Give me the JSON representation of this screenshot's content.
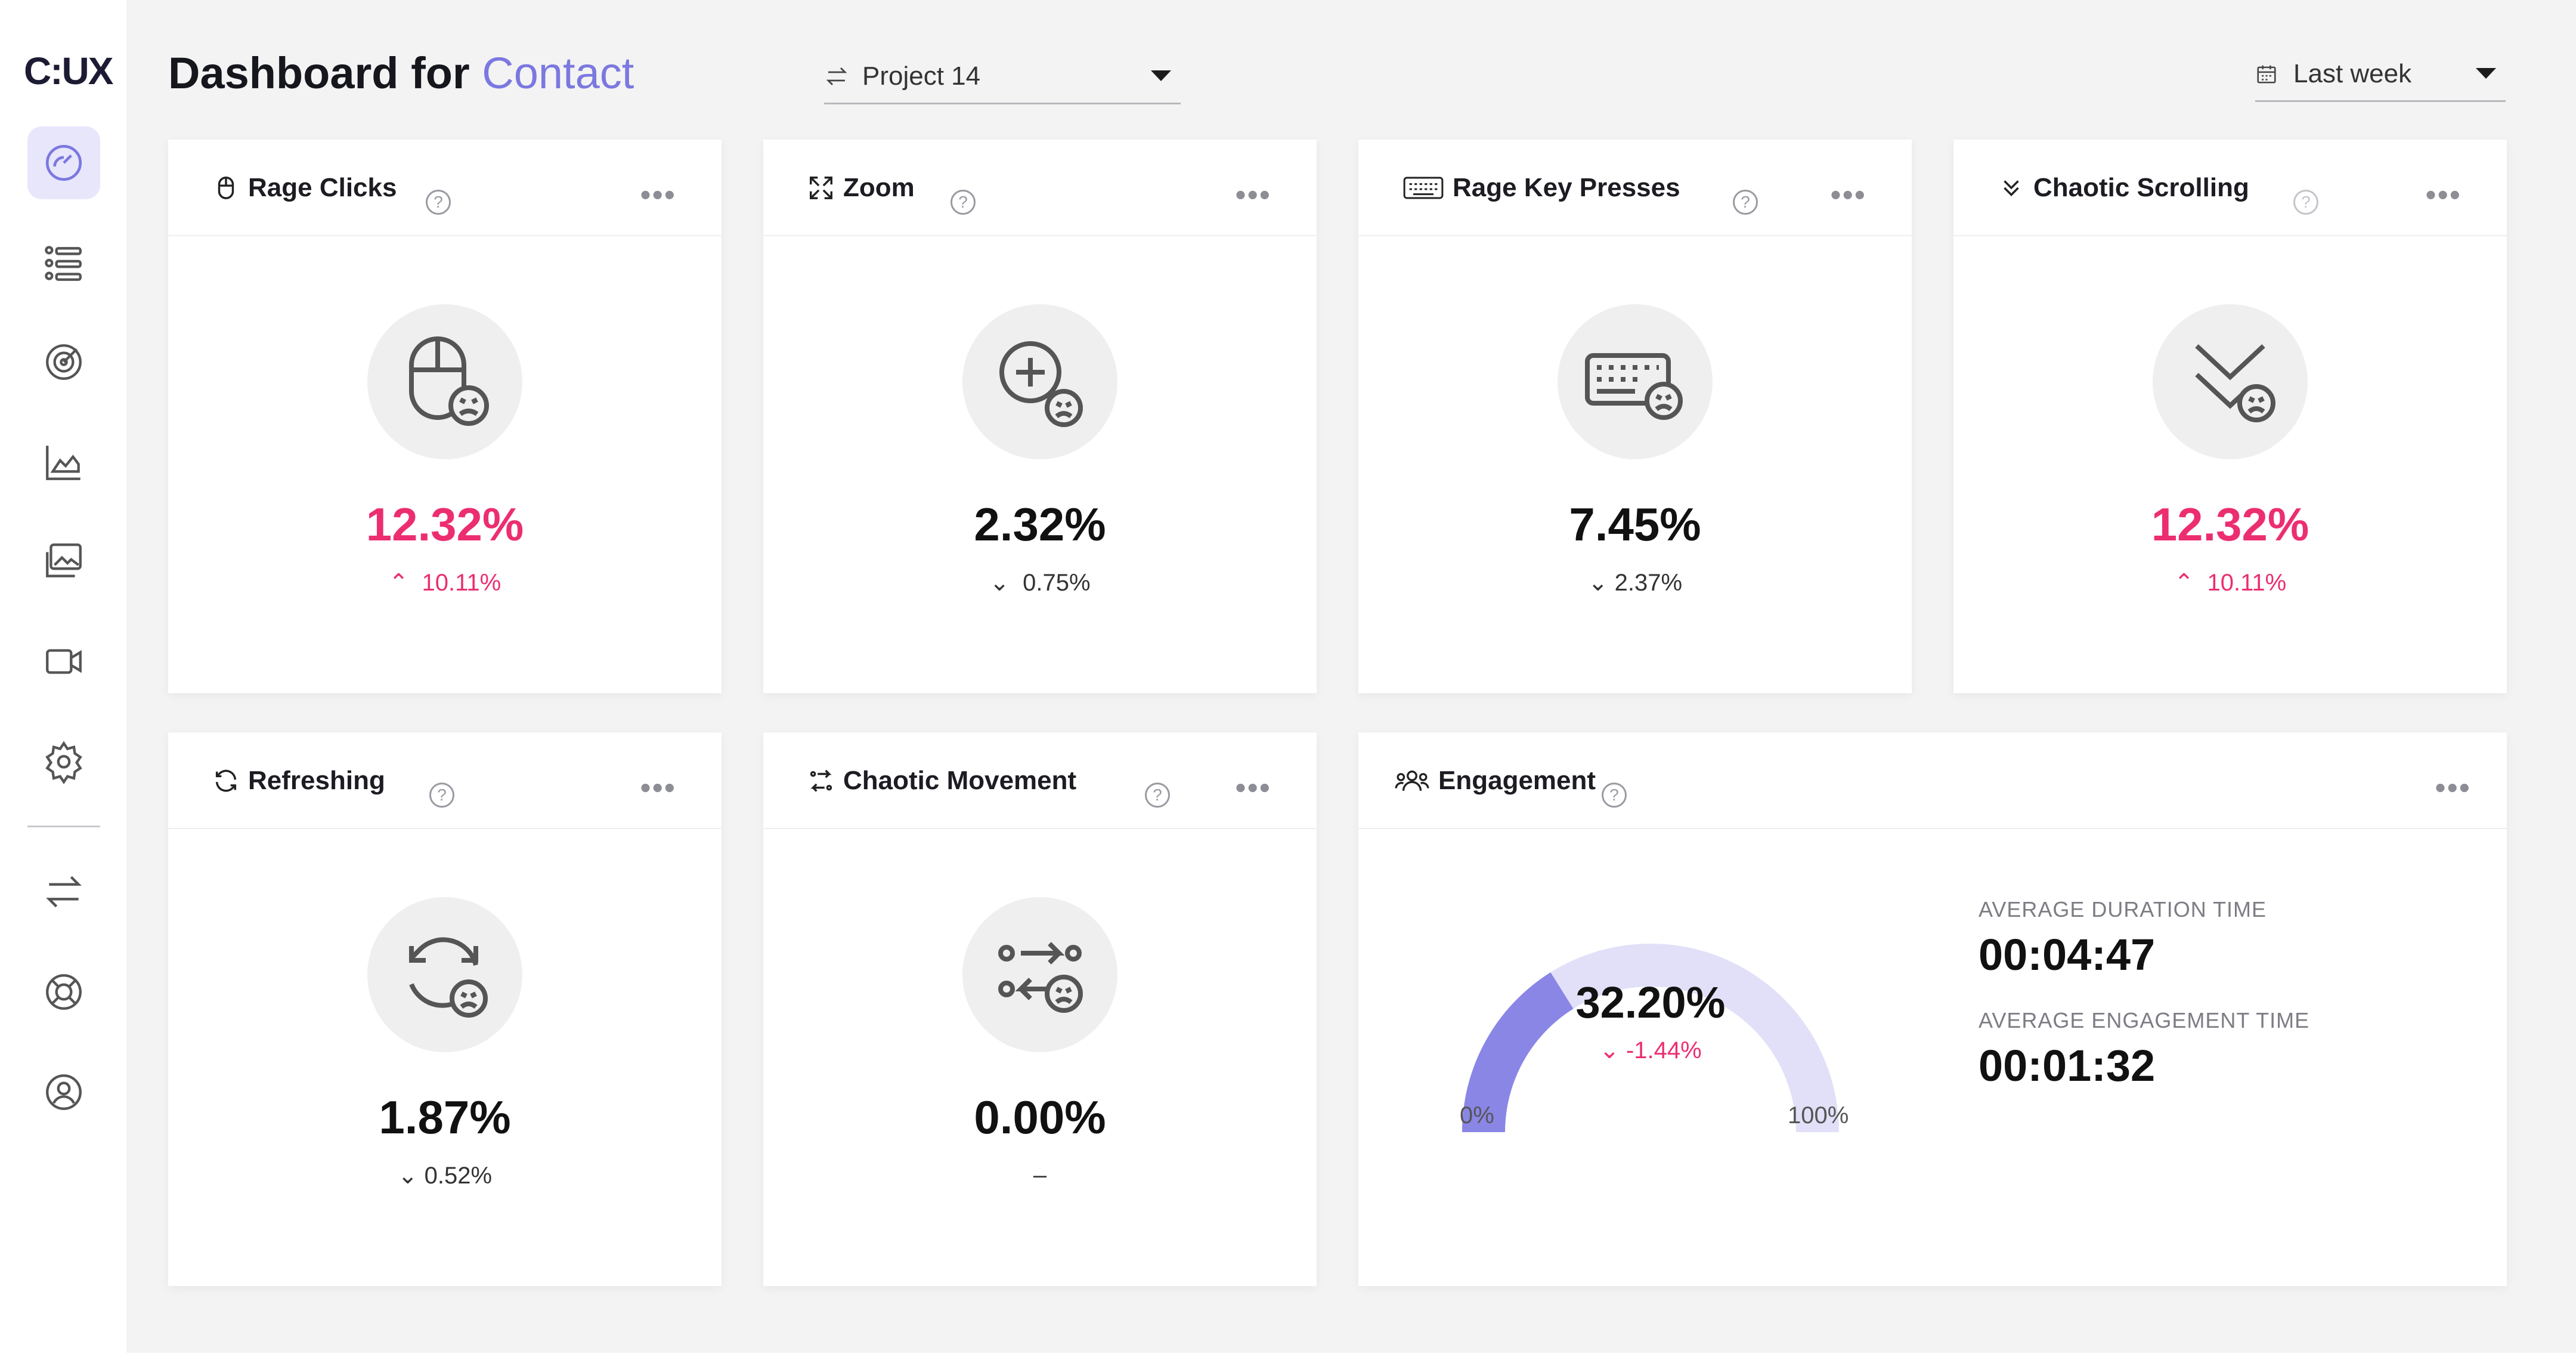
{
  "app": {
    "logo": "C:UX"
  },
  "sidebar": {
    "items": [
      {
        "name": "dashboard",
        "icon": "gauge-icon"
      },
      {
        "name": "segments",
        "icon": "list-users-icon"
      },
      {
        "name": "goals",
        "icon": "target-icon"
      },
      {
        "name": "analytics",
        "icon": "area-chart-icon"
      },
      {
        "name": "heatmaps",
        "icon": "images-icon"
      },
      {
        "name": "recordings",
        "icon": "video-icon"
      },
      {
        "name": "settings",
        "icon": "gear-icon"
      },
      {
        "name": "switch-project",
        "icon": "arrows-swap-icon"
      },
      {
        "name": "support",
        "icon": "lifebuoy-icon"
      },
      {
        "name": "account",
        "icon": "user-circle-icon"
      }
    ]
  },
  "header": {
    "title": "Dashboard for",
    "title_accent": "Contact",
    "project_select": {
      "value": "Project 14",
      "icon": "arrows-swap-icon"
    },
    "date_select": {
      "value": "Last week",
      "icon": "calendar-icon"
    }
  },
  "cards": {
    "rage_clicks": {
      "title": "Rage Clicks",
      "value": "12.32%",
      "delta": "10.11%",
      "trend": "up",
      "alert": true
    },
    "zoom": {
      "title": "Zoom",
      "value": "2.32%",
      "delta": "0.75%",
      "trend": "down",
      "alert": false
    },
    "rage_key_presses": {
      "title": "Rage Key Presses",
      "value": "7.45%",
      "delta": "2.37%",
      "trend": "down",
      "alert": false
    },
    "chaotic_scrolling": {
      "title": "Chaotic Scrolling",
      "value": "12.32%",
      "delta": "10.11%",
      "trend": "up",
      "alert": true
    },
    "refreshing": {
      "title": "Refreshing",
      "value": "1.87%",
      "delta": "0.52%",
      "trend": "down",
      "alert": false
    },
    "chaotic_movement": {
      "title": "Chaotic Movement",
      "value": "0.00%",
      "delta": "–",
      "trend": "none",
      "alert": false
    }
  },
  "engagement": {
    "title": "Engagement",
    "value": "32.20%",
    "fraction": 0.322,
    "delta": "-1.44%",
    "min_label": "0%",
    "max_label": "100%",
    "avg_duration_label": "AVERAGE DURATION TIME",
    "avg_duration_value": "00:04:47",
    "avg_engagement_label": "AVERAGE ENGAGEMENT TIME",
    "avg_engagement_value": "00:01:32"
  },
  "colors": {
    "accent": "#7b78e0",
    "alert": "#ec2e71",
    "gauge_fill": "#8a86e6",
    "gauge_track": "#e1e0f8"
  }
}
